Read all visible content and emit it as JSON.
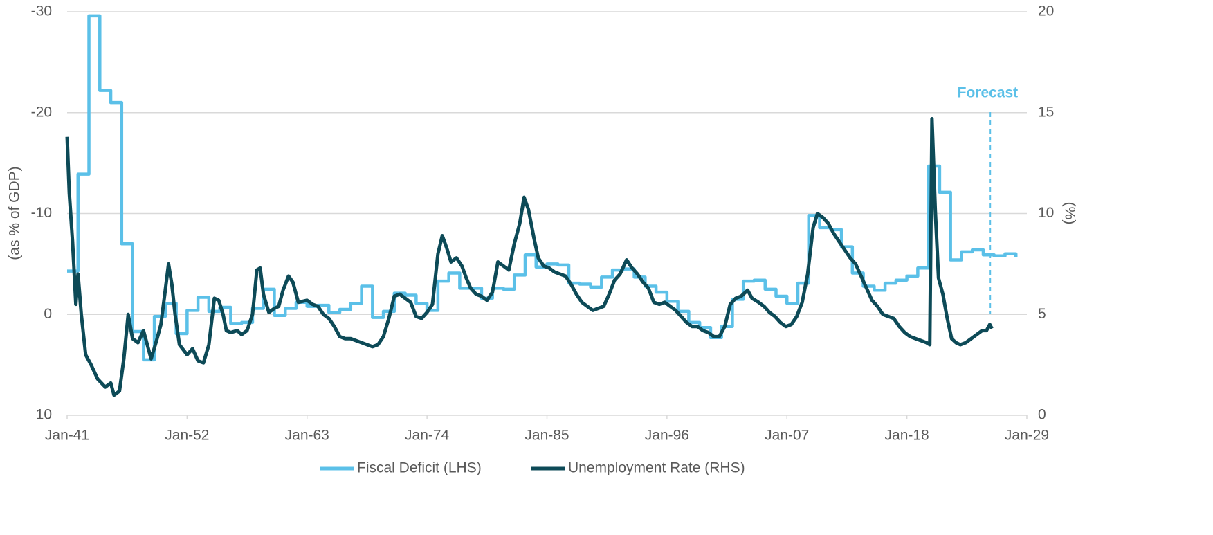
{
  "chart_data": {
    "type": "line",
    "y_label": "(as % of GDP)",
    "y2_label": "(%)",
    "xlim": [
      1941,
      2029
    ],
    "xticks": [
      {
        "value": 1941,
        "label": "Jan-41"
      },
      {
        "value": 1952,
        "label": "Jan-52"
      },
      {
        "value": 1963,
        "label": "Jan-63"
      },
      {
        "value": 1974,
        "label": "Jan-74"
      },
      {
        "value": 1985,
        "label": "Jan-85"
      },
      {
        "value": 1996,
        "label": "Jan-96"
      },
      {
        "value": 2007,
        "label": "Jan-07"
      },
      {
        "value": 2018,
        "label": "Jan-18"
      },
      {
        "value": 2029,
        "label": "Jan-29"
      }
    ],
    "ylim": [
      10,
      -30
    ],
    "yticks": [
      -30,
      -20,
      -10,
      0,
      10
    ],
    "y2lim": [
      0,
      20
    ],
    "y2ticks": [
      0,
      5,
      10,
      15,
      20
    ],
    "grid": true,
    "legend": "bottom",
    "annotation": {
      "text": "Forecast",
      "x": 2025.65,
      "color": "#5bc0e8"
    },
    "series": [
      {
        "name": "Fiscal Deficit (LHS)",
        "color": "#5bc0e8",
        "step": true,
        "x": [
          1941,
          1942,
          1943,
          1944,
          1945,
          1946,
          1947,
          1948,
          1949,
          1950,
          1951,
          1952,
          1953,
          1954,
          1955,
          1956,
          1957,
          1958,
          1959,
          1960,
          1961,
          1962,
          1963,
          1964,
          1965,
          1966,
          1967,
          1968,
          1969,
          1970,
          1971,
          1972,
          1973,
          1974,
          1975,
          1976,
          1977,
          1978,
          1979,
          1980,
          1981,
          1982,
          1983,
          1984,
          1985,
          1986,
          1987,
          1988,
          1989,
          1990,
          1991,
          1992,
          1993,
          1994,
          1995,
          1996,
          1997,
          1998,
          1999,
          2000,
          2001,
          2002,
          2003,
          2004,
          2005,
          2006,
          2007,
          2008,
          2009,
          2010,
          2011,
          2012,
          2013,
          2014,
          2015,
          2016,
          2017,
          2018,
          2019,
          2020,
          2021,
          2022,
          2023,
          2024,
          2025,
          2026,
          2027,
          2028
        ],
        "values": [
          -4.3,
          -13.9,
          -29.6,
          -22.2,
          -21.0,
          -7.0,
          1.7,
          4.5,
          0.2,
          -1.1,
          1.9,
          -0.4,
          -1.7,
          -0.3,
          -0.7,
          0.9,
          0.8,
          -0.6,
          -2.5,
          0.1,
          -0.6,
          -1.2,
          -0.8,
          -0.9,
          -0.2,
          -0.5,
          -1.1,
          -2.8,
          0.3,
          -0.3,
          -2.1,
          -1.9,
          -1.1,
          -0.4,
          -3.3,
          -4.1,
          -2.6,
          -2.6,
          -1.6,
          -2.6,
          -2.5,
          -3.9,
          -5.9,
          -4.7,
          -5.0,
          -4.9,
          -3.1,
          -3.0,
          -2.7,
          -3.7,
          -4.4,
          -4.5,
          -3.7,
          -2.8,
          -2.2,
          -1.3,
          -0.3,
          0.8,
          1.3,
          2.3,
          1.2,
          -1.5,
          -3.3,
          -3.4,
          -2.5,
          -1.8,
          -1.1,
          -3.1,
          -9.8,
          -8.6,
          -8.4,
          -6.7,
          -4.1,
          -2.8,
          -2.4,
          -3.1,
          -3.4,
          -3.8,
          -4.6,
          -14.7,
          -12.1,
          -5.4,
          -6.2,
          -6.4,
          -5.9,
          -5.8,
          -6.0,
          -5.7
        ]
      },
      {
        "name": "Unemployment Rate (RHS)",
        "color": "#0d4a57",
        "axis": "y2",
        "x": [
          1941.0,
          1941.2,
          1941.5,
          1941.8,
          1942.0,
          1942.3,
          1942.7,
          1943.2,
          1943.8,
          1944.5,
          1945.0,
          1945.3,
          1945.8,
          1946.2,
          1946.6,
          1947.0,
          1947.5,
          1948.0,
          1948.3,
          1948.7,
          1949.2,
          1949.6,
          1950.0,
          1950.3,
          1950.6,
          1950.9,
          1951.3,
          1952.0,
          1952.5,
          1953.0,
          1953.5,
          1954.0,
          1954.5,
          1954.9,
          1955.3,
          1955.6,
          1956.0,
          1956.6,
          1957.0,
          1957.5,
          1958.0,
          1958.4,
          1958.7,
          1959.0,
          1959.5,
          1960.0,
          1960.4,
          1960.8,
          1961.3,
          1961.7,
          1962.2,
          1963.0,
          1963.5,
          1964.0,
          1964.5,
          1965.0,
          1965.5,
          1966.0,
          1966.5,
          1967.0,
          1968.0,
          1969.0,
          1969.5,
          1970.0,
          1970.5,
          1971.0,
          1971.5,
          1972.0,
          1972.5,
          1973.0,
          1973.5,
          1974.0,
          1974.5,
          1975.0,
          1975.4,
          1975.8,
          1976.2,
          1976.7,
          1977.2,
          1977.6,
          1978.0,
          1978.5,
          1979.0,
          1979.5,
          1980.0,
          1980.5,
          1981.0,
          1981.5,
          1982.0,
          1982.5,
          1982.9,
          1983.3,
          1983.8,
          1984.2,
          1984.7,
          1985.2,
          1985.7,
          1986.2,
          1986.7,
          1987.2,
          1987.7,
          1988.2,
          1988.7,
          1989.2,
          1989.7,
          1990.2,
          1990.7,
          1991.2,
          1991.7,
          1992.3,
          1992.8,
          1993.3,
          1993.8,
          1994.3,
          1994.8,
          1995.3,
          1995.8,
          1996.3,
          1996.8,
          1997.3,
          1997.8,
          1998.3,
          1998.8,
          1999.3,
          1999.8,
          2000.3,
          2000.8,
          2001.3,
          2001.8,
          2002.3,
          2002.8,
          2003.4,
          2003.8,
          2004.4,
          2004.9,
          2005.4,
          2005.9,
          2006.4,
          2006.9,
          2007.4,
          2007.9,
          2008.4,
          2008.9,
          2009.4,
          2009.8,
          2010.3,
          2010.8,
          2011.3,
          2011.8,
          2012.3,
          2012.8,
          2013.3,
          2013.8,
          2014.3,
          2014.8,
          2015.3,
          2015.8,
          2016.3,
          2016.8,
          2017.3,
          2017.8,
          2018.3,
          2018.8,
          2019.3,
          2019.8,
          2020.1,
          2020.3,
          2020.6,
          2020.9,
          2021.3,
          2021.7,
          2022.1,
          2022.5,
          2022.9,
          2023.4,
          2023.9,
          2024.4,
          2024.9,
          2025.3,
          2025.6,
          2025.8
        ],
        "values": [
          13.8,
          11.0,
          8.6,
          5.5,
          7.0,
          5.0,
          3.0,
          2.5,
          1.8,
          1.4,
          1.6,
          1.0,
          1.2,
          2.8,
          5.0,
          3.8,
          3.6,
          4.2,
          3.6,
          2.8,
          3.7,
          4.5,
          6.2,
          7.5,
          6.5,
          5.0,
          3.5,
          3.0,
          3.3,
          2.7,
          2.6,
          3.5,
          5.8,
          5.7,
          5.0,
          4.2,
          4.1,
          4.2,
          4.0,
          4.2,
          5.0,
          7.2,
          7.3,
          6.0,
          5.1,
          5.3,
          5.4,
          6.2,
          6.9,
          6.6,
          5.6,
          5.7,
          5.5,
          5.4,
          5.0,
          4.8,
          4.4,
          3.9,
          3.8,
          3.8,
          3.6,
          3.4,
          3.5,
          3.9,
          4.8,
          5.9,
          6.0,
          5.8,
          5.6,
          4.9,
          4.8,
          5.1,
          5.5,
          8.0,
          8.9,
          8.3,
          7.6,
          7.8,
          7.4,
          6.8,
          6.3,
          6.0,
          5.9,
          5.7,
          6.1,
          7.6,
          7.4,
          7.2,
          8.5,
          9.5,
          10.8,
          10.2,
          8.8,
          7.8,
          7.4,
          7.3,
          7.1,
          7.0,
          6.9,
          6.5,
          6.0,
          5.6,
          5.4,
          5.2,
          5.3,
          5.4,
          6.0,
          6.7,
          7.0,
          7.7,
          7.3,
          7.0,
          6.6,
          6.3,
          5.6,
          5.5,
          5.6,
          5.4,
          5.2,
          4.9,
          4.6,
          4.4,
          4.4,
          4.2,
          4.1,
          3.9,
          3.9,
          4.4,
          5.5,
          5.8,
          5.9,
          6.2,
          5.8,
          5.6,
          5.4,
          5.1,
          4.9,
          4.6,
          4.4,
          4.5,
          4.9,
          5.6,
          7.0,
          9.3,
          10.0,
          9.8,
          9.5,
          9.0,
          8.6,
          8.2,
          7.8,
          7.5,
          6.9,
          6.3,
          5.7,
          5.4,
          5.0,
          4.9,
          4.8,
          4.4,
          4.1,
          3.9,
          3.8,
          3.7,
          3.6,
          3.5,
          14.7,
          10.2,
          6.8,
          6.0,
          4.8,
          3.8,
          3.6,
          3.5,
          3.6,
          3.8,
          4.0,
          4.2,
          4.2,
          4.5,
          4.3
        ]
      }
    ]
  }
}
